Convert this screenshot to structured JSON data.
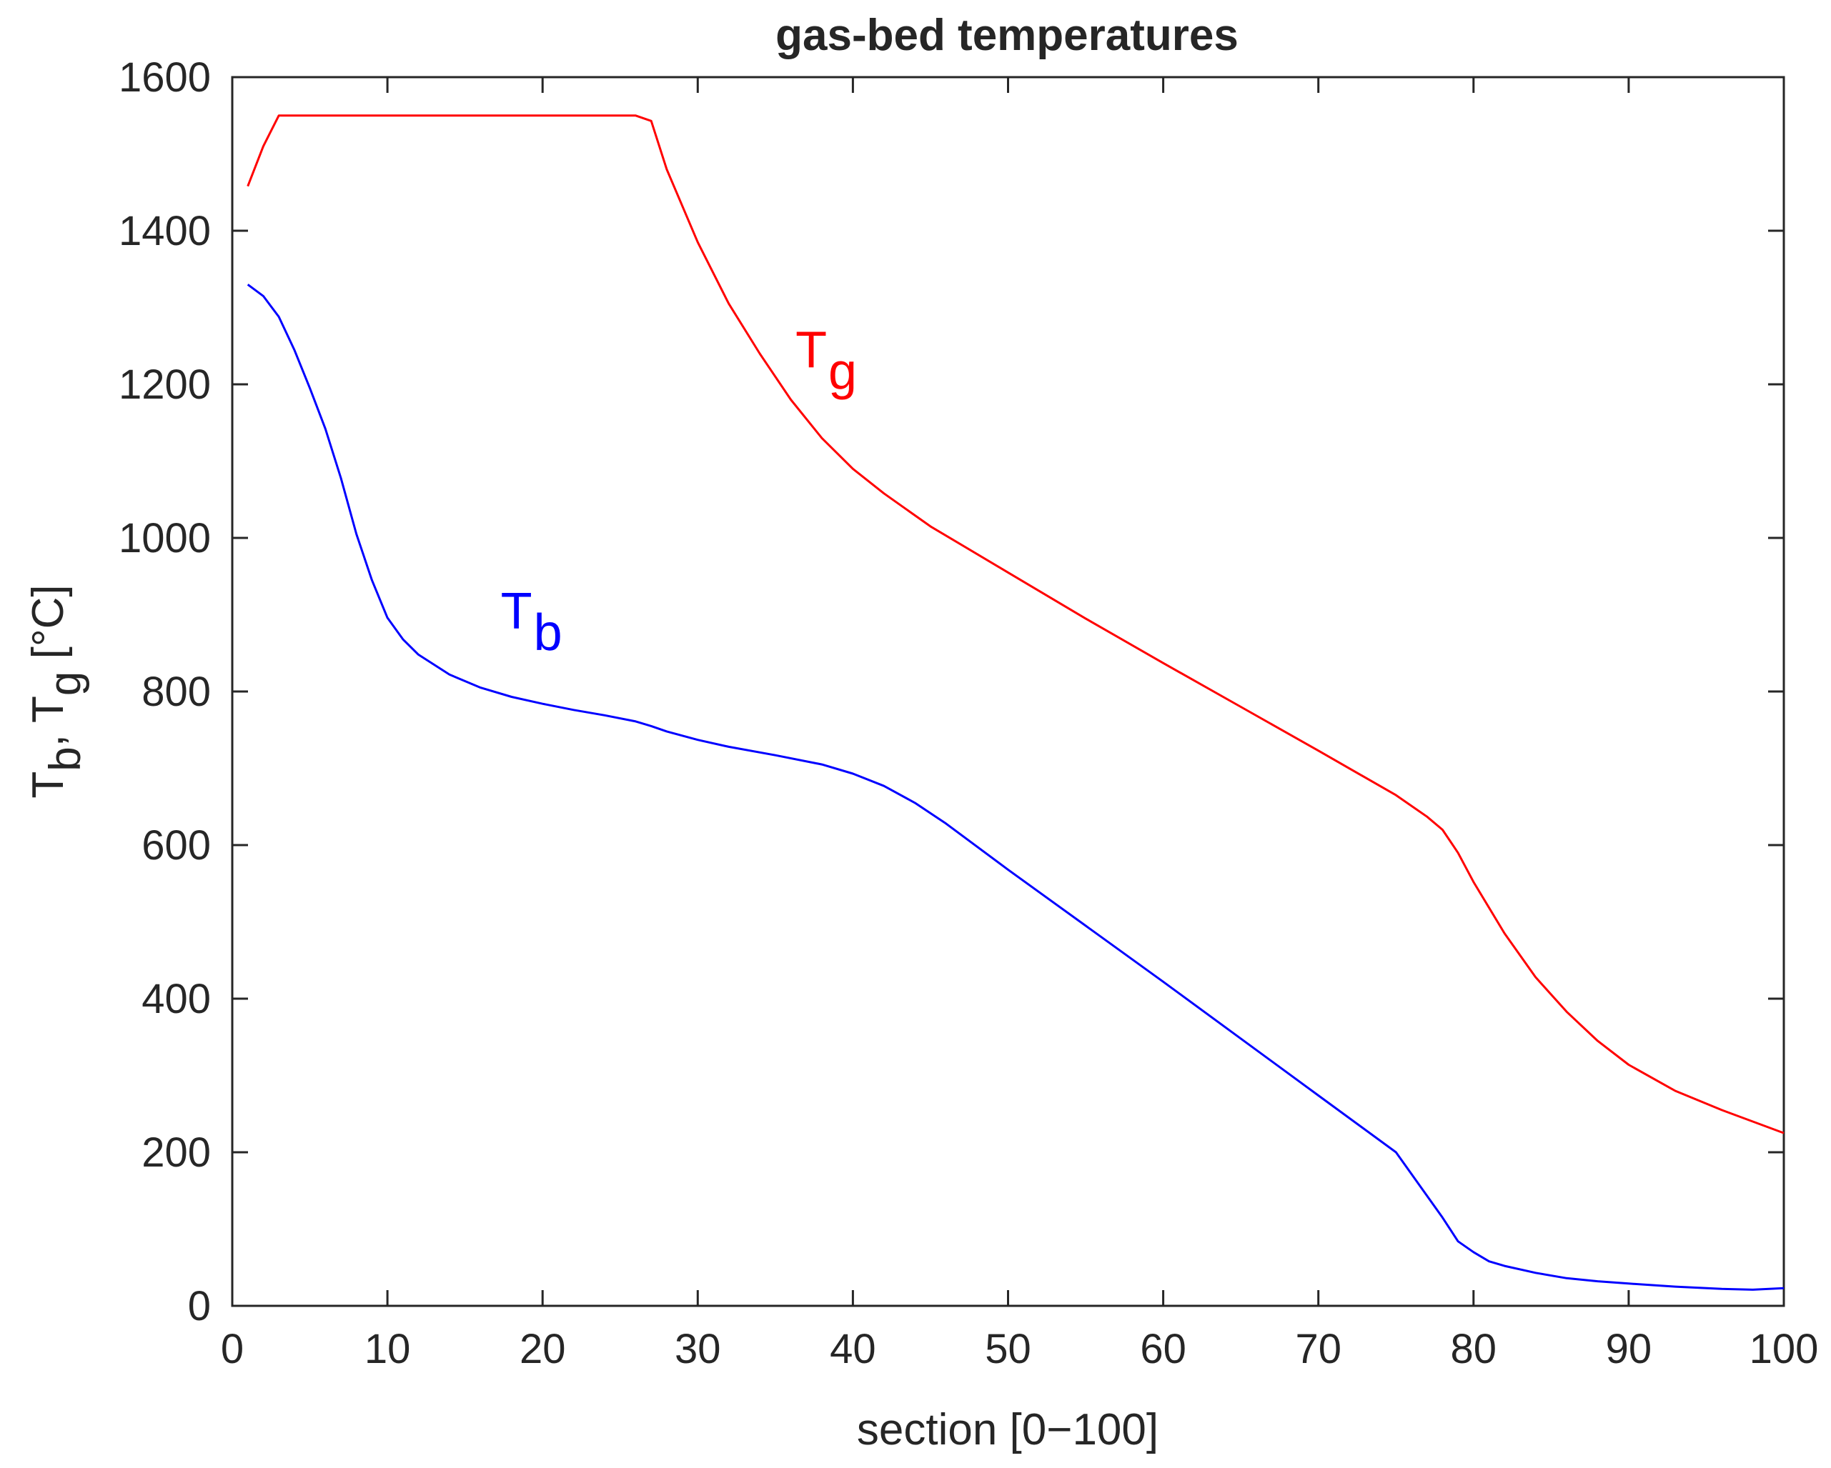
{
  "chart_data": {
    "type": "line",
    "title": "gas-bed temperatures",
    "xlabel": "section [0−100]",
    "ylabel": {
      "parts": [
        "T",
        "b",
        ", T",
        "g",
        " [°C]"
      ]
    },
    "xlim": [
      0,
      100
    ],
    "ylim": [
      0,
      1600
    ],
    "xticks": [
      0,
      10,
      20,
      30,
      40,
      50,
      60,
      70,
      80,
      90,
      100
    ],
    "yticks": [
      0,
      200,
      400,
      600,
      800,
      1000,
      1200,
      1400,
      1600
    ],
    "grid": false,
    "series": [
      {
        "key": "Tg",
        "label_main": "T",
        "label_sub": "g",
        "label_at": [
          36.3,
          1222
        ],
        "color": "#ff0000",
        "x": [
          1,
          2,
          3,
          4,
          6,
          10,
          15,
          20,
          24,
          26,
          27,
          28,
          30,
          32,
          34,
          36,
          38,
          40,
          42,
          45,
          50,
          55,
          60,
          65,
          70,
          75,
          77,
          78,
          79,
          80,
          82,
          84,
          86,
          88,
          90,
          93,
          96,
          100
        ],
        "y": [
          1458,
          1510,
          1550,
          1550,
          1550,
          1550,
          1550,
          1550,
          1550,
          1550,
          1543,
          1480,
          1385,
          1305,
          1240,
          1180,
          1130,
          1090,
          1058,
          1015,
          955,
          895,
          837,
          780,
          723,
          665,
          637,
          620,
          590,
          552,
          485,
          428,
          383,
          345,
          314,
          280,
          255,
          225
        ]
      },
      {
        "key": "Tb",
        "label_main": "T",
        "label_sub": "b",
        "label_at": [
          17.3,
          882
        ],
        "color": "#0000ff",
        "x": [
          1,
          2,
          3,
          4,
          5,
          6,
          7,
          8,
          9,
          10,
          11,
          12,
          14,
          16,
          18,
          20,
          22,
          24,
          26,
          27,
          28,
          30,
          32,
          35,
          38,
          40,
          42,
          44,
          46,
          50,
          55,
          60,
          65,
          70,
          75,
          78,
          79,
          80,
          81,
          82,
          84,
          86,
          88,
          90,
          93,
          96,
          98,
          100
        ],
        "y": [
          1330,
          1315,
          1288,
          1245,
          1195,
          1142,
          1078,
          1005,
          945,
          896,
          868,
          848,
          822,
          805,
          793,
          784,
          776,
          769,
          761,
          755,
          748,
          737,
          728,
          717,
          705,
          693,
          677,
          655,
          628,
          568,
          495,
          422,
          348,
          274,
          200,
          115,
          84,
          70,
          58,
          52,
          43,
          36,
          32,
          29,
          25,
          22,
          21,
          23
        ]
      }
    ]
  }
}
